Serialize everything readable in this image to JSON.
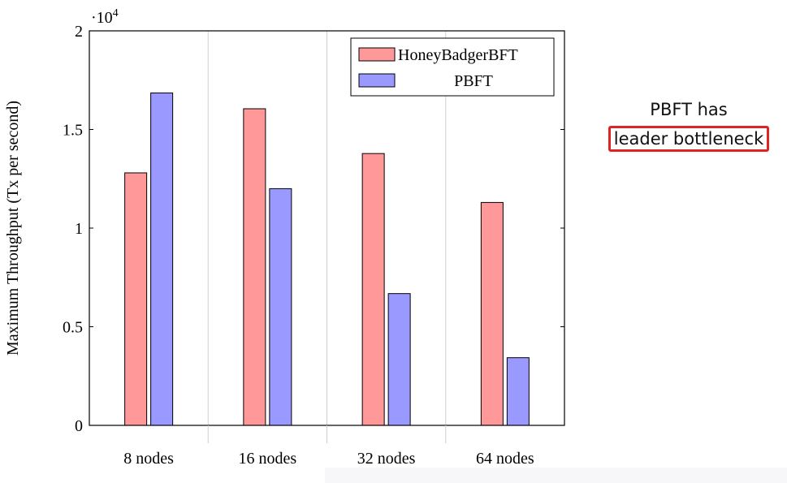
{
  "chart_data": {
    "type": "bar",
    "categories": [
      "8 nodes",
      "16 nodes",
      "32 nodes",
      "64 nodes"
    ],
    "series": [
      {
        "name": "HoneyBadgerBFT",
        "values": [
          12800,
          16050,
          13780,
          11300
        ],
        "color": "#ff9999"
      },
      {
        "name": "PBFT",
        "values": [
          16850,
          12000,
          6680,
          3430
        ],
        "color": "#9999ff"
      }
    ],
    "ylabel": "Maximum Throughput (Tx per second)",
    "ylim": [
      0,
      20000
    ],
    "yticks": [
      "0",
      "0.5",
      "1",
      "1.5",
      "2"
    ],
    "y_scale_label": "·10",
    "y_scale_exponent": "4",
    "legend_position": "top-right",
    "grid": "vertical between categories"
  },
  "annotation": {
    "line1": "PBFT has",
    "line2": "leader bottleneck",
    "box_color": "#e02424"
  }
}
